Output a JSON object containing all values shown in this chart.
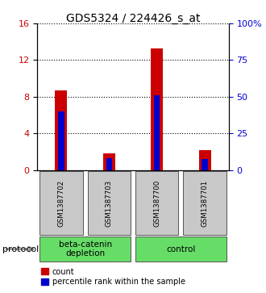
{
  "title": "GDS5324 / 224426_s_at",
  "samples": [
    "GSM1387702",
    "GSM1387703",
    "GSM1387700",
    "GSM1387701"
  ],
  "count_values": [
    8.7,
    1.8,
    13.3,
    2.2
  ],
  "percentile_values": [
    40.0,
    8.0,
    51.0,
    7.5
  ],
  "bar_width": 0.25,
  "ylim_left": [
    0,
    16
  ],
  "ylim_right": [
    0,
    100
  ],
  "yticks_left": [
    0,
    4,
    8,
    12,
    16
  ],
  "ytick_labels_left": [
    "0",
    "4",
    "8",
    "12",
    "16"
  ],
  "yticks_right": [
    0,
    25,
    50,
    75,
    100
  ],
  "ytick_labels_right": [
    "0",
    "25",
    "50",
    "75",
    "100%"
  ],
  "count_color": "#cc0000",
  "percentile_color": "#0000cc",
  "bg_color": "#ffffff",
  "protocol_groups": [
    {
      "label": "beta-catenin\ndepletion",
      "samples": [
        0,
        1
      ],
      "color": "#66dd66"
    },
    {
      "label": "control",
      "samples": [
        2,
        3
      ],
      "color": "#66dd66"
    }
  ],
  "protocol_label": "protocol",
  "legend_count_label": "count",
  "legend_percentile_label": "percentile rank within the sample",
  "sample_box_color": "#c8c8c8",
  "title_fontsize": 10,
  "axis_fontsize": 8,
  "tick_fontsize": 8
}
